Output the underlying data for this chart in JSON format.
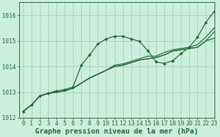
{
  "background_color": "#cceedd",
  "grid_color": "#aaccbb",
  "line_color": "#1a6b3a",
  "title": "Graphe pression niveau de la mer (hPa)",
  "xlim": [
    -0.5,
    23
  ],
  "ylim": [
    1012.0,
    1016.5
  ],
  "yticks": [
    1012,
    1013,
    1014,
    1015,
    1016
  ],
  "xticks": [
    0,
    1,
    2,
    3,
    4,
    5,
    6,
    7,
    8,
    9,
    10,
    11,
    12,
    13,
    14,
    15,
    16,
    17,
    18,
    19,
    20,
    21,
    22,
    23
  ],
  "series": [
    {
      "y": [
        1012.25,
        1012.5,
        1012.85,
        1012.95,
        1013.0,
        1013.05,
        1013.15,
        1013.35,
        1013.55,
        1013.7,
        1013.85,
        1014.0,
        1014.05,
        1014.15,
        1014.25,
        1014.3,
        1014.35,
        1014.45,
        1014.6,
        1014.65,
        1014.7,
        1014.75,
        1015.0,
        1015.1
      ],
      "marker": false,
      "lw": 0.9
    },
    {
      "y": [
        1012.25,
        1012.5,
        1012.85,
        1012.95,
        1013.0,
        1013.05,
        1013.15,
        1013.35,
        1013.55,
        1013.7,
        1013.85,
        1014.0,
        1014.05,
        1014.15,
        1014.25,
        1014.3,
        1014.35,
        1014.45,
        1014.6,
        1014.65,
        1014.7,
        1014.75,
        1015.0,
        1015.35
      ],
      "marker": false,
      "lw": 0.9
    },
    {
      "y": [
        1012.25,
        1012.5,
        1012.85,
        1012.95,
        1013.0,
        1013.05,
        1013.15,
        1013.35,
        1013.55,
        1013.7,
        1013.85,
        1014.05,
        1014.1,
        1014.2,
        1014.3,
        1014.4,
        1014.4,
        1014.55,
        1014.65,
        1014.7,
        1014.75,
        1014.85,
        1015.15,
        1015.5
      ],
      "marker": false,
      "lw": 0.9
    },
    {
      "y": [
        1012.25,
        1012.5,
        1012.85,
        1012.95,
        1013.05,
        1013.1,
        1013.2,
        1014.05,
        1014.45,
        1014.88,
        1015.08,
        1015.18,
        1015.18,
        1015.08,
        1014.98,
        1014.62,
        1014.18,
        1014.12,
        1014.22,
        1014.5,
        1014.75,
        1015.15,
        1015.72,
        1016.15
      ],
      "marker": true,
      "lw": 0.9
    }
  ],
  "title_fontsize": 7.5,
  "tick_fontsize": 6.0
}
